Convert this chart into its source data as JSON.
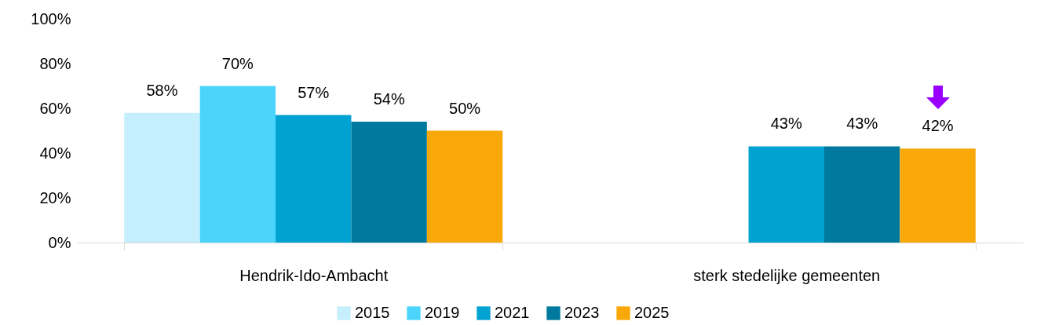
{
  "chart_data": {
    "type": "bar",
    "categories": [
      "Hendrik-Ido-Ambacht",
      "sterk stedelijke gemeenten"
    ],
    "series": [
      {
        "name": "2015",
        "color": "#c5effc",
        "values": [
          58,
          null
        ],
        "value_labels": [
          "58%",
          null
        ]
      },
      {
        "name": "2019",
        "color": "#4bd5fc",
        "values": [
          70,
          null
        ],
        "value_labels": [
          "70%",
          null
        ]
      },
      {
        "name": "2021",
        "color": "#00a2d1",
        "values": [
          57,
          43
        ],
        "value_labels": [
          "57%",
          "43%"
        ]
      },
      {
        "name": "2023",
        "color": "#00799e",
        "values": [
          54,
          43
        ],
        "value_labels": [
          "54%",
          "43%"
        ]
      },
      {
        "name": "2025",
        "color": "#f9a80a",
        "values": [
          50,
          42
        ],
        "value_labels": [
          "50%",
          "42%"
        ]
      }
    ],
    "ylim": [
      0,
      100
    ],
    "yticks": [
      {
        "value": 0,
        "label": "0%"
      },
      {
        "value": 20,
        "label": "20%"
      },
      {
        "value": 40,
        "label": "40%"
      },
      {
        "value": 60,
        "label": "60%"
      },
      {
        "value": 80,
        "label": "80%"
      },
      {
        "value": 100,
        "label": "100%"
      }
    ],
    "grid": false,
    "legend": "bottom"
  }
}
